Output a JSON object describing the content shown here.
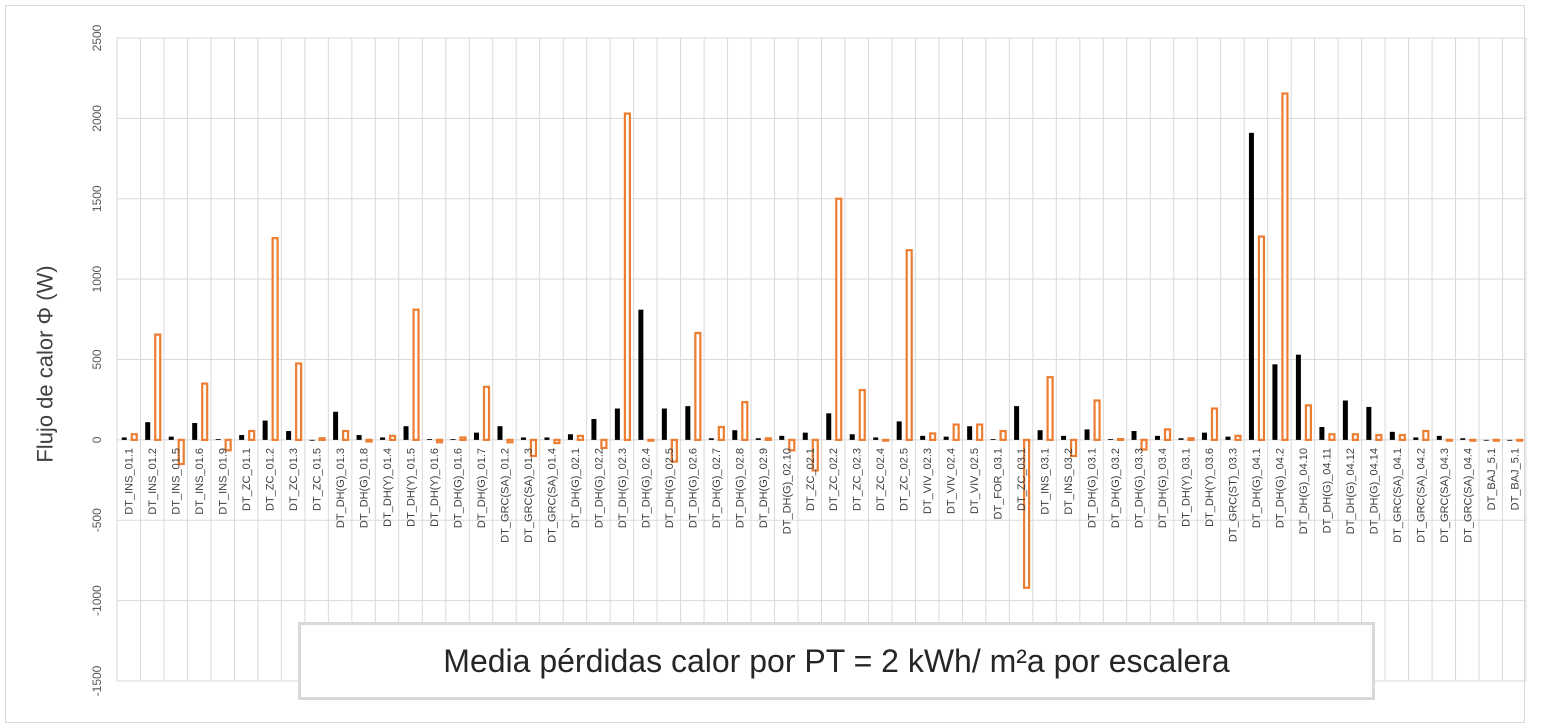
{
  "chart_data": {
    "type": "bar",
    "title": "",
    "xlabel": "",
    "ylabel": "Flujo de calor Φ (W)",
    "annotation": "Media pérdidas calor por PT = 2 kWh/ m²a por escalera",
    "ylim": [
      -1500,
      2500
    ],
    "yticks": [
      -1500,
      -1000,
      -500,
      0,
      500,
      1000,
      1500,
      2000,
      2500
    ],
    "grid": true,
    "legend": "none",
    "categories": [
      "DT_INS_01.1",
      "DT_INS_01.2",
      "DT_INS_01.5",
      "DT_INS_01.6",
      "DT_INS_01.9",
      "DT_ZC_01.1",
      "DT_ZC_01.2",
      "DT_ZC_01.3",
      "DT_ZC_01.5",
      "DT_DH(G)_01.3",
      "DT_DH(G)_01.8",
      "DT_DH(Y)_01.4",
      "DT_DH(Y)_01.5",
      "DT_DH(Y)_01.6",
      "DT_DH(G)_01.6",
      "DT_DH(G)_01.7",
      "DT_GRC(SA)_01.2",
      "DT_GRC(SA)_01.3",
      "DT_GRC(SA)_01.4",
      "DT_DH(G)_02.1",
      "DT_DH(G)_02.2",
      "DT_DH(G)_02.3",
      "DT_DH(G)_02.4",
      "DT_DH(G)_02.5",
      "DT_DH(G)_02.6",
      "DT_DH(G)_02.7",
      "DT_DH(G)_02.8",
      "DT_DH(G)_02.9",
      "DT_DH(G)_02.10",
      "DT_ZC_02.1",
      "DT_ZC_02.2",
      "DT_ZC_02.3",
      "DT_ZC_02.4",
      "DT_ZC_02.5",
      "DT_VIV_02.3",
      "DT_VIV_02.4",
      "DT_VIV_02.5",
      "DT_FOR_03.1",
      "DT_ZC_03.1",
      "DT_INS_03.1",
      "DT_INS_03.2",
      "DT_DH(G)_03.1",
      "DT_DH(G)_03.2",
      "DT_DH(G)_03.3",
      "DT_DH(G)_03.4",
      "DT_DH(Y)_03.1",
      "DT_DH(Y)_03.6",
      "DT_GRC(ST)_03.3",
      "DT_DH(G)_04.1",
      "DT_DH(G)_04.2",
      "DT_DH(G)_04.10",
      "DT_DH(G)_04.11",
      "DT_DH(G)_04.12",
      "DT_DH(G)_04.14",
      "DT_GRC(SA)_04.1",
      "DT_GRC(SA)_04.2",
      "DT_GRC(SA)_04.3",
      "DT_GRC(SA)_04.4",
      "DT_BAJ_5.1",
      "DT_BAJ_5.1"
    ],
    "series": [
      {
        "color": "#000000",
        "style": "filled",
        "values": [
          15,
          110,
          20,
          105,
          5,
          30,
          120,
          55,
          0,
          175,
          30,
          15,
          85,
          5,
          5,
          45,
          85,
          15,
          15,
          35,
          130,
          195,
          810,
          195,
          210,
          10,
          60,
          10,
          25,
          45,
          165,
          35,
          15,
          115,
          25,
          20,
          85,
          5,
          210,
          60,
          25,
          65,
          5,
          55,
          25,
          10,
          45,
          20,
          1910,
          470,
          530,
          80,
          245,
          205,
          50,
          15,
          25,
          10,
          0,
          0
        ]
      },
      {
        "color": "#ed7d31",
        "style": "outline",
        "values": [
          35,
          655,
          -150,
          350,
          -65,
          55,
          1255,
          475,
          10,
          55,
          -10,
          25,
          810,
          -15,
          15,
          330,
          -15,
          -100,
          -20,
          25,
          -50,
          2030,
          0,
          -135,
          665,
          80,
          235,
          10,
          -65,
          -190,
          1500,
          310,
          0,
          1180,
          40,
          95,
          95,
          55,
          -920,
          390,
          -100,
          245,
          5,
          -60,
          65,
          10,
          195,
          25,
          1265,
          2155,
          215,
          35,
          35,
          30,
          30,
          55,
          0,
          0,
          0,
          0
        ]
      }
    ]
  }
}
